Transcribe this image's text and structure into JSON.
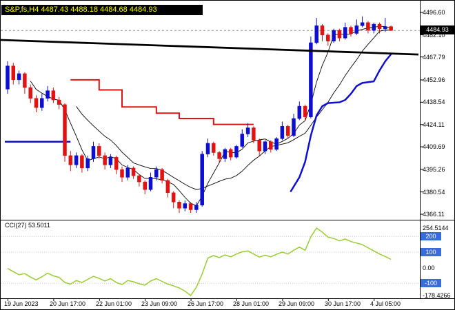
{
  "title": "S&P,fs,H4 4487.43 4488.18 4484.68 4484.93",
  "colors": {
    "up": "#0e0ecf",
    "down": "#e21212",
    "background": "#ffffff",
    "ma": "#000000",
    "trendline": "#000000",
    "cci_line": "#9acd32",
    "level_badge": "#3a6bd8",
    "price_badge": "#000000",
    "title_fg": "#ffff00",
    "title_bg": "#000000"
  },
  "price_axis": {
    "current_label": "4484.93",
    "ticks": [
      {
        "label": "4496.60",
        "p": 4496.6
      },
      {
        "label": "4482.10",
        "p": 4482.1
      },
      {
        "label": "4467.79",
        "p": 4467.79
      },
      {
        "label": "4452.96",
        "p": 4452.96
      },
      {
        "label": "4438.54",
        "p": 4438.54
      },
      {
        "label": "4424.11",
        "p": 4424.11
      },
      {
        "label": "4409.69",
        "p": 4409.69
      },
      {
        "label": "4395.26",
        "p": 4395.26
      },
      {
        "label": "4380.54",
        "p": 4380.54
      },
      {
        "label": "4366.11",
        "p": 4366.11
      }
    ]
  },
  "time_axis": [
    {
      "label": "19 Jun 2023",
      "bar": 0
    },
    {
      "label": "20 Jun 17:00",
      "bar": 8
    },
    {
      "label": "22 Jun 01:00",
      "bar": 16
    },
    {
      "label": "23 Jun 09:00",
      "bar": 24
    },
    {
      "label": "26 Jun 17:00",
      "bar": 32
    },
    {
      "label": "28 Jun 01:00",
      "bar": 40
    },
    {
      "label": "29 Jun 09:00",
      "bar": 48
    },
    {
      "label": "30 Jun 17:00",
      "bar": 56
    },
    {
      "label": "4 Jul 05:00",
      "bar": 64
    }
  ],
  "chart_data": {
    "type": "candlestick",
    "symbol": "S&P,fs",
    "timeframe": "H4",
    "last_bar": {
      "open": 4487.43,
      "high": 4488.18,
      "low": 4484.68,
      "close": 4484.93
    },
    "current_price": 4484.93,
    "ohlc": [
      [
        4447,
        4465,
        4444,
        4462
      ],
      [
        4462,
        4464,
        4450,
        4453
      ],
      [
        4453,
        4459,
        4450,
        4457
      ],
      [
        4457,
        4458,
        4444,
        4448
      ],
      [
        4448,
        4450,
        4438,
        4441
      ],
      [
        4441,
        4443,
        4432,
        4435
      ],
      [
        4435,
        4444,
        4433,
        4441
      ],
      [
        4441,
        4449,
        4439,
        4446
      ],
      [
        4446,
        4448,
        4438,
        4440
      ],
      [
        4440,
        4442,
        4434,
        4437
      ],
      [
        4437,
        4438,
        4400,
        4404
      ],
      [
        4404,
        4407,
        4394,
        4398
      ],
      [
        4398,
        4406,
        4396,
        4404
      ],
      [
        4404,
        4405,
        4393,
        4396
      ],
      [
        4396,
        4404,
        4394,
        4402
      ],
      [
        4402,
        4413,
        4400,
        4410
      ],
      [
        4410,
        4412,
        4402,
        4404
      ],
      [
        4404,
        4406,
        4395,
        4398
      ],
      [
        4398,
        4405,
        4396,
        4403
      ],
      [
        4403,
        4404,
        4392,
        4395
      ],
      [
        4395,
        4397,
        4387,
        4390
      ],
      [
        4390,
        4398,
        4388,
        4396
      ],
      [
        4396,
        4397,
        4389,
        4391
      ],
      [
        4391,
        4392,
        4384,
        4387
      ],
      [
        4387,
        4388,
        4379,
        4382
      ],
      [
        4382,
        4393,
        4381,
        4390
      ],
      [
        4390,
        4397,
        4388,
        4395
      ],
      [
        4395,
        4396,
        4386,
        4388
      ],
      [
        4388,
        4389,
        4377,
        4380
      ],
      [
        4380,
        4381,
        4370,
        4374
      ],
      [
        4374,
        4375,
        4367,
        4370
      ],
      [
        4370,
        4375,
        4368,
        4373
      ],
      [
        4373,
        4374,
        4367,
        4369
      ],
      [
        4369,
        4374,
        4367,
        4372
      ],
      [
        4372,
        4407,
        4371,
        4405
      ],
      [
        4405,
        4415,
        4403,
        4412
      ],
      [
        4412,
        4413,
        4404,
        4406
      ],
      [
        4406,
        4407,
        4399,
        4402
      ],
      [
        4402,
        4409,
        4400,
        4408
      ],
      [
        4408,
        4409,
        4401,
        4403
      ],
      [
        4403,
        4411,
        4402,
        4410
      ],
      [
        4410,
        4421,
        4409,
        4418
      ],
      [
        4418,
        4425,
        4416,
        4422
      ],
      [
        4422,
        4423,
        4412,
        4414
      ],
      [
        4414,
        4415,
        4404,
        4407
      ],
      [
        4407,
        4414,
        4405,
        4413
      ],
      [
        4413,
        4414,
        4406,
        4408
      ],
      [
        4408,
        4416,
        4407,
        4415
      ],
      [
        4415,
        4426,
        4414,
        4423
      ],
      [
        4423,
        4424,
        4415,
        4417
      ],
      [
        4417,
        4431,
        4416,
        4428
      ],
      [
        4428,
        4439,
        4427,
        4436
      ],
      [
        4436,
        4437,
        4427,
        4429
      ],
      [
        4429,
        4481,
        4428,
        4477
      ],
      [
        4477,
        4493,
        4476,
        4488
      ],
      [
        4488,
        4489,
        4478,
        4482
      ],
      [
        4482,
        4483,
        4475,
        4478
      ],
      [
        4478,
        4486,
        4477,
        4485
      ],
      [
        4485,
        4486,
        4478,
        4480
      ],
      [
        4480,
        4490,
        4479,
        4487
      ],
      [
        4487,
        4488,
        4481,
        4483
      ],
      [
        4483,
        4492,
        4482,
        4488
      ],
      [
        4488,
        4494,
        4487,
        4490
      ],
      [
        4490,
        4491,
        4483,
        4485
      ],
      [
        4485,
        4490,
        4483,
        4489
      ],
      [
        4489,
        4490,
        4483,
        4486
      ],
      [
        4486,
        4493,
        4484,
        4487.43
      ],
      [
        4487.43,
        4488.18,
        4484.68,
        4484.93
      ]
    ],
    "overlays": {
      "trendline": {
        "p_left": 4478.8,
        "p_right": 4469.4
      },
      "support_line": {
        "from_bar": 0,
        "to_bar": 11,
        "price": 4413
      },
      "resistance_steps": [
        [
          11,
          16,
          4453
        ],
        [
          16,
          20,
          4446.5
        ],
        [
          20,
          26,
          4435.5
        ],
        [
          26,
          30,
          4431.5
        ],
        [
          30,
          36,
          4428
        ],
        [
          36,
          43,
          4424.2
        ]
      ],
      "trend_support": [
        [
          49.5,
          4381
        ],
        [
          51,
          4390
        ],
        [
          52,
          4400
        ],
        [
          53,
          4417
        ],
        [
          54,
          4430
        ],
        [
          55,
          4436
        ],
        [
          56,
          4438
        ],
        [
          58,
          4438.5
        ],
        [
          59,
          4440
        ],
        [
          60,
          4444
        ],
        [
          61,
          4449
        ],
        [
          62,
          4451
        ],
        [
          64,
          4452
        ],
        [
          65,
          4459
        ],
        [
          66,
          4465
        ],
        [
          67,
          4469.5
        ]
      ],
      "ma_periods": [
        5,
        13
      ]
    },
    "cci": {
      "label": "CCI(27) 53.5011",
      "period": 27,
      "current": 53.5011,
      "scale_max": 254.5144,
      "scale_min": -178.4266,
      "levels": [
        200,
        100,
        -100
      ],
      "level_labels": [
        "200",
        "100",
        "-100"
      ],
      "scale_labels": [
        {
          "label": "254.5144",
          "v": 254.5144
        },
        {
          "label": "0.00",
          "v": 0
        },
        {
          "label": "-178.4266",
          "v": -178.4266
        }
      ],
      "values": [
        -5,
        -25,
        -45,
        -38,
        -60,
        -78,
        -58,
        -35,
        -52,
        -62,
        -95,
        -105,
        -82,
        -95,
        -75,
        -55,
        -68,
        -85,
        -70,
        -95,
        -108,
        -82,
        -90,
        -103,
        -112,
        -85,
        -70,
        -88,
        -105,
        -116,
        -130,
        -150,
        -178.4266,
        -125,
        -40,
        62,
        78,
        65,
        82,
        70,
        88,
        102,
        108,
        88,
        68,
        80,
        70,
        86,
        100,
        88,
        112,
        132,
        112,
        198,
        254.5144,
        228,
        196,
        188,
        172,
        184,
        168,
        158,
        148,
        128,
        108,
        88,
        72,
        53.5011
      ]
    }
  }
}
